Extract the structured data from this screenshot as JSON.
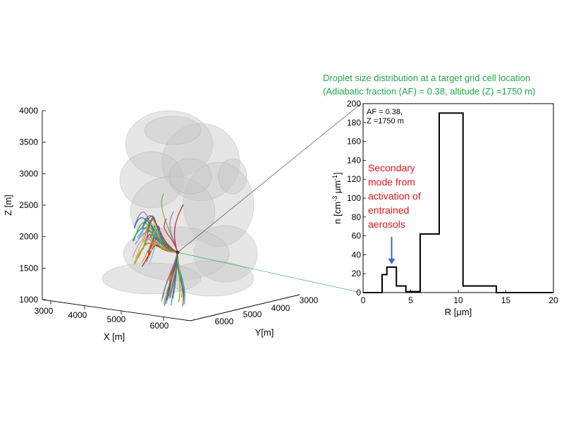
{
  "figure": {
    "title_line1": "Droplet size distribution at a target grid cell location",
    "title_line2": "(Adiabatic fraction (AF) = 0.38, altitude (Z) =1750 m)",
    "box_line1": "AF = 0.38,",
    "box_line2": "Z =1750 m",
    "annotation_lines": [
      "Secondary",
      "mode from",
      "activation of",
      "entrained",
      "aerosols"
    ]
  },
  "colors": {
    "title": "#1fa64a",
    "annotation": "#e0141b",
    "arrow": "#3a6bbf",
    "connector": "#555555"
  },
  "chart_data": [
    {
      "type": "line",
      "subtype": "3d-plume-with-trajectories",
      "xlabel": "X [m]",
      "ylabel": "Y[m]",
      "zlabel": "Z [m]",
      "x_ticks": [
        "3000",
        "4000",
        "5000",
        "6000"
      ],
      "y_ticks": [
        "3000",
        "4000",
        "5000",
        "6000"
      ],
      "z_ticks": [
        "1000",
        "1500",
        "2000",
        "2500",
        "3000",
        "3500",
        "4000"
      ],
      "zlim": [
        1000,
        4000
      ],
      "target_z": 1750
    },
    {
      "type": "line",
      "subtype": "histogram-step",
      "xlabel": "R [μm]",
      "ylabel": "n [cm⁻³ μm⁻¹]",
      "xlim": [
        0,
        20
      ],
      "ylim": [
        0,
        200
      ],
      "x_ticks": [
        "0",
        "5",
        "10",
        "15",
        "20"
      ],
      "y_ticks": [
        "0",
        "20",
        "40",
        "60",
        "80",
        "100",
        "120",
        "140",
        "160",
        "180",
        "200"
      ],
      "bins": [
        {
          "r0": 0,
          "r1": 2,
          "n": 0
        },
        {
          "r0": 2,
          "r1": 2.5,
          "n": 19
        },
        {
          "r0": 2.5,
          "r1": 3.5,
          "n": 27
        },
        {
          "r0": 3.5,
          "r1": 4.5,
          "n": 7
        },
        {
          "r0": 4.5,
          "r1": 6,
          "n": 1
        },
        {
          "r0": 6,
          "r1": 8,
          "n": 62
        },
        {
          "r0": 8,
          "r1": 10.5,
          "n": 190
        },
        {
          "r0": 10.5,
          "r1": 14,
          "n": 7
        },
        {
          "r0": 14,
          "r1": 20,
          "n": 0
        }
      ],
      "arrow_target_r": 3
    }
  ]
}
